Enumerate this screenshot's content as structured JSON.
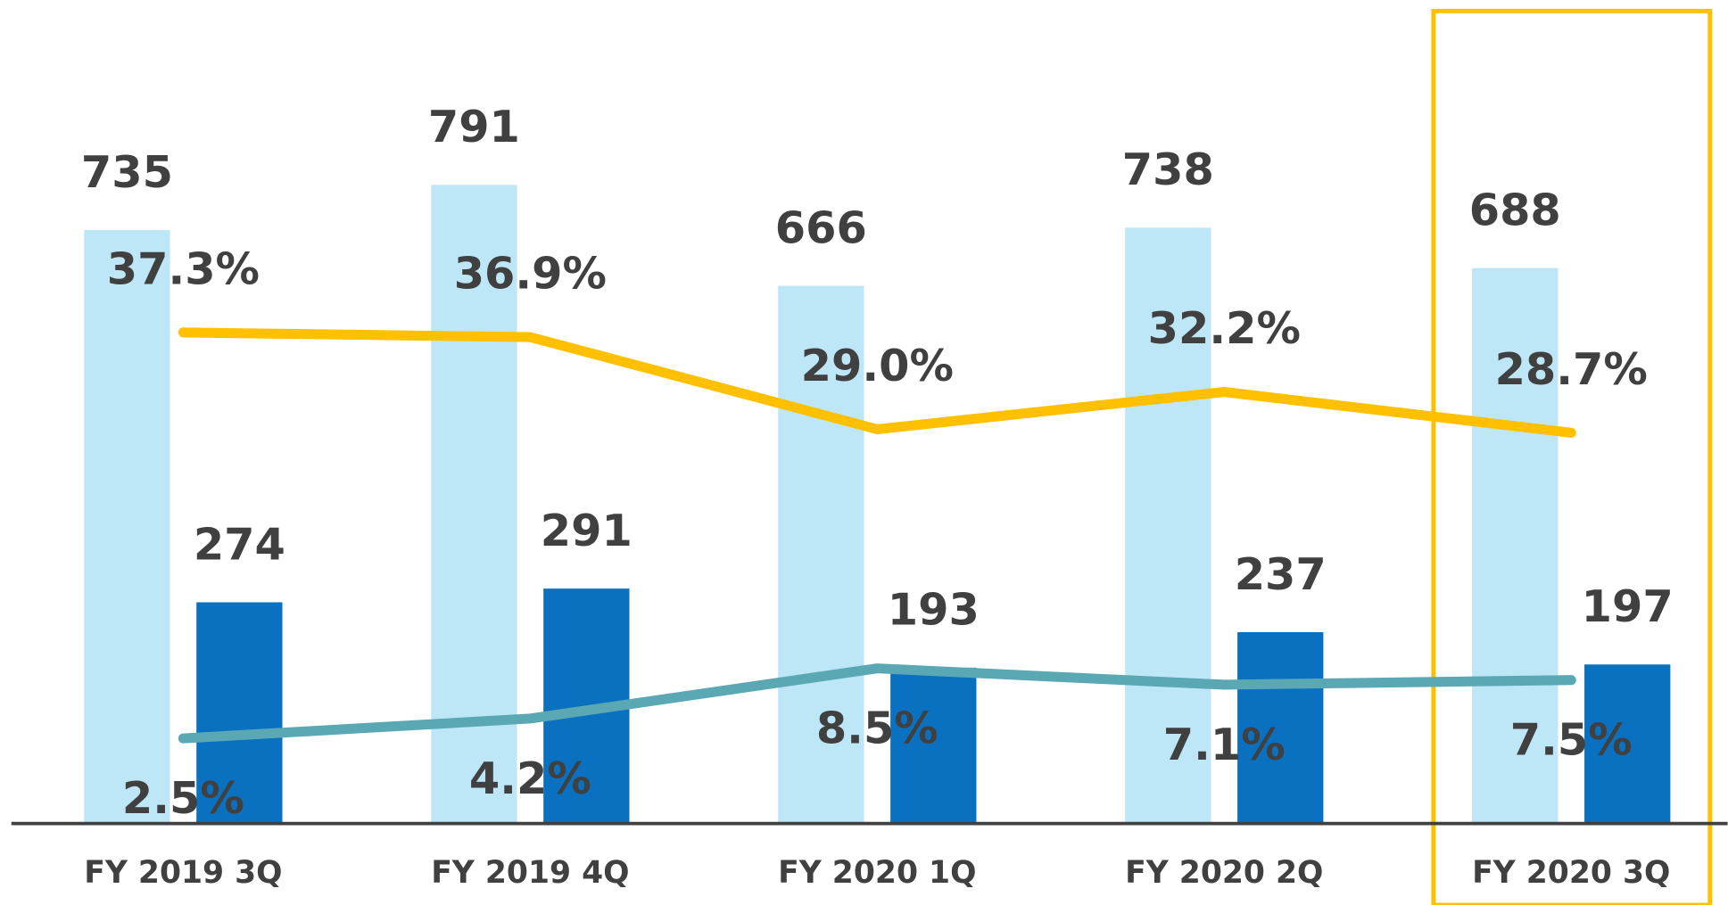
{
  "chart_data": {
    "type": "bar",
    "categories": [
      "FY 2019 3Q",
      "FY 2019 4Q",
      "FY 2020 1Q",
      "FY 2020 2Q",
      "FY 2020 3Q"
    ],
    "series": [
      {
        "type": "bar",
        "color": "#bde6f7",
        "values": [
          735,
          791,
          666,
          738,
          688
        ]
      },
      {
        "type": "bar",
        "color": "#0a70c0",
        "values": [
          274,
          291,
          193,
          237,
          197
        ]
      },
      {
        "type": "line",
        "axis": "y2",
        "color": "#ffc000",
        "values": [
          37.3,
          36.9,
          29.0,
          32.2,
          28.7
        ],
        "value_labels": [
          "37.3%",
          "36.9%",
          "29.0%",
          "32.2%",
          "28.7%"
        ]
      },
      {
        "type": "line",
        "axis": "y2",
        "color": "#5ba8b5",
        "values": [
          2.5,
          4.2,
          8.5,
          7.1,
          7.5
        ],
        "value_labels": [
          "2.5%",
          "4.2%",
          "8.5%",
          "7.1%",
          "7.5%"
        ]
      }
    ],
    "ylim": [
      0,
      1020
    ],
    "y2lim": [
      -4.8,
      65.8
    ]
  }
}
